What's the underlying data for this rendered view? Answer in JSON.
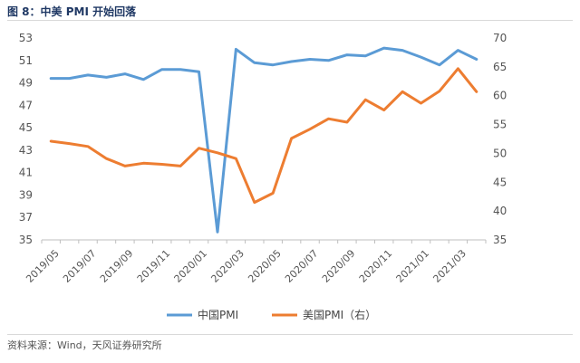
{
  "header": {
    "title": "图 8：中美 PMI 开始回落"
  },
  "footer": {
    "source": "资料来源：Wind，天风证券研究所"
  },
  "chart_data": {
    "type": "line",
    "title": "图 8：中美 PMI 开始回落",
    "xlabel": "",
    "ylabel": "",
    "x": [
      "2019/05",
      "2019/06",
      "2019/07",
      "2019/08",
      "2019/09",
      "2019/10",
      "2019/11",
      "2019/12",
      "2020/01",
      "2020/02",
      "2020/03",
      "2020/04",
      "2020/05",
      "2020/06",
      "2020/07",
      "2020/08",
      "2020/09",
      "2020/10",
      "2020/11",
      "2020/12",
      "2021/01",
      "2021/02",
      "2021/03",
      "2021/04"
    ],
    "x_tick_labels": [
      "2019/05",
      "2019/07",
      "2019/09",
      "2019/11",
      "2020/01",
      "2020/03",
      "2020/05",
      "2020/07",
      "2020/09",
      "2020/11",
      "2021/01",
      "2021/03"
    ],
    "y_left": {
      "min": 35,
      "max": 53,
      "ticks": [
        35,
        37,
        39,
        41,
        43,
        45,
        47,
        49,
        51,
        53
      ]
    },
    "y_right": {
      "min": 35,
      "max": 70,
      "ticks": [
        35,
        40,
        45,
        50,
        55,
        60,
        65,
        70
      ]
    },
    "series": [
      {
        "name": "中国PMI",
        "axis": "left",
        "color": "#5b9bd5",
        "values": [
          49.4,
          49.4,
          49.7,
          49.5,
          49.8,
          49.3,
          50.2,
          50.2,
          50.0,
          35.7,
          52.0,
          50.8,
          50.6,
          50.9,
          51.1,
          51.0,
          51.5,
          51.4,
          52.1,
          51.9,
          51.3,
          50.6,
          51.9,
          51.1
        ]
      },
      {
        "name": "美国PMI（右）",
        "axis": "right",
        "color": "#ed7d31",
        "values": [
          52.1,
          51.7,
          51.2,
          49.1,
          47.8,
          48.3,
          48.1,
          47.8,
          50.9,
          50.1,
          49.1,
          41.5,
          43.1,
          52.6,
          54.2,
          56.0,
          55.4,
          59.3,
          57.5,
          60.7,
          58.7,
          60.8,
          64.7,
          60.7
        ]
      }
    ],
    "legend": "bottom-center",
    "grid": false
  }
}
